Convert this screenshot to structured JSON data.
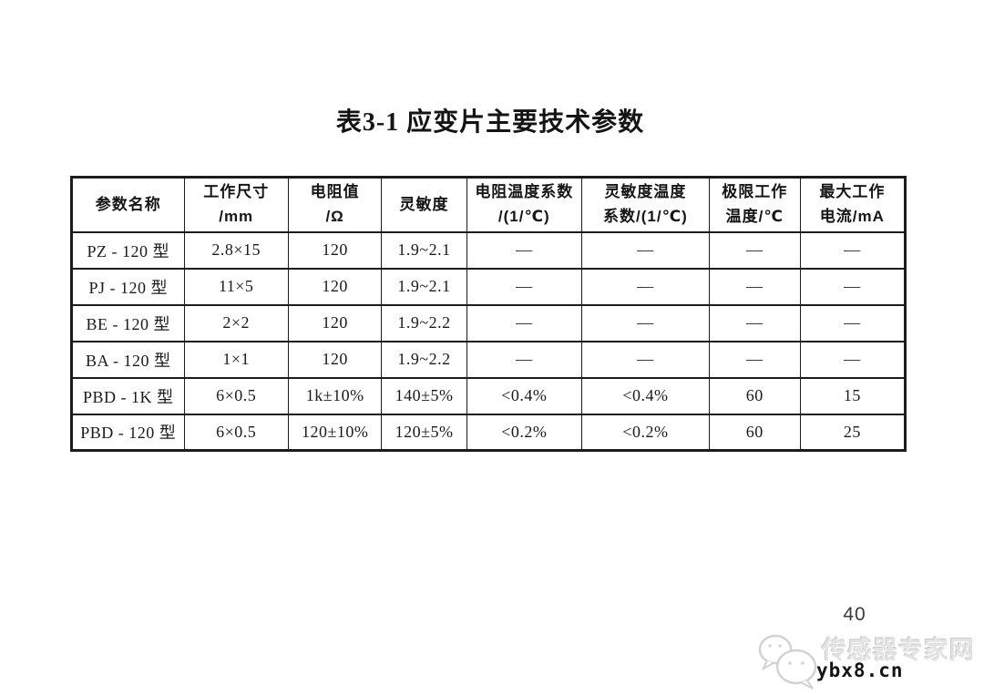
{
  "page": {
    "title": "表3-1 应变片主要技术参数",
    "page_number": "40"
  },
  "table": {
    "headers": [
      {
        "line1": "参数名称",
        "line2": ""
      },
      {
        "line1": "工作尺寸",
        "line2": "/mm"
      },
      {
        "line1": "电阻值",
        "line2": "/Ω"
      },
      {
        "line1": "灵敏度",
        "line2": ""
      },
      {
        "line1": "电阻温度系数",
        "line2": "/(1/℃)"
      },
      {
        "line1": "灵敏度温度",
        "line2": "系数/(1/℃)"
      },
      {
        "line1": "极限工作",
        "line2": "温度/℃"
      },
      {
        "line1": "最大工作",
        "line2": "电流/mA"
      }
    ],
    "rows": [
      [
        "PZ - 120 型",
        "2.8×15",
        "120",
        "1.9~2.1",
        "—",
        "—",
        "—",
        "—"
      ],
      [
        "PJ - 120 型",
        "11×5",
        "120",
        "1.9~2.1",
        "—",
        "—",
        "—",
        "—"
      ],
      [
        "BE - 120 型",
        "2×2",
        "120",
        "1.9~2.2",
        "—",
        "—",
        "—",
        "—"
      ],
      [
        "BA - 120 型",
        "1×1",
        "120",
        "1.9~2.2",
        "—",
        "—",
        "—",
        "—"
      ],
      [
        "PBD - 1K 型",
        "6×0.5",
        "1k±10%",
        "140±5%",
        "<0.4%",
        "<0.4%",
        "60",
        "15"
      ],
      [
        "PBD - 120 型",
        "6×0.5",
        "120±10%",
        "120±5%",
        "<0.2%",
        "<0.2%",
        "60",
        "25"
      ]
    ]
  },
  "watermark": {
    "logo_icon": "chat-bubbles-logo",
    "site_name": "传感器专家网",
    "site_url": "ybx8.cn"
  }
}
